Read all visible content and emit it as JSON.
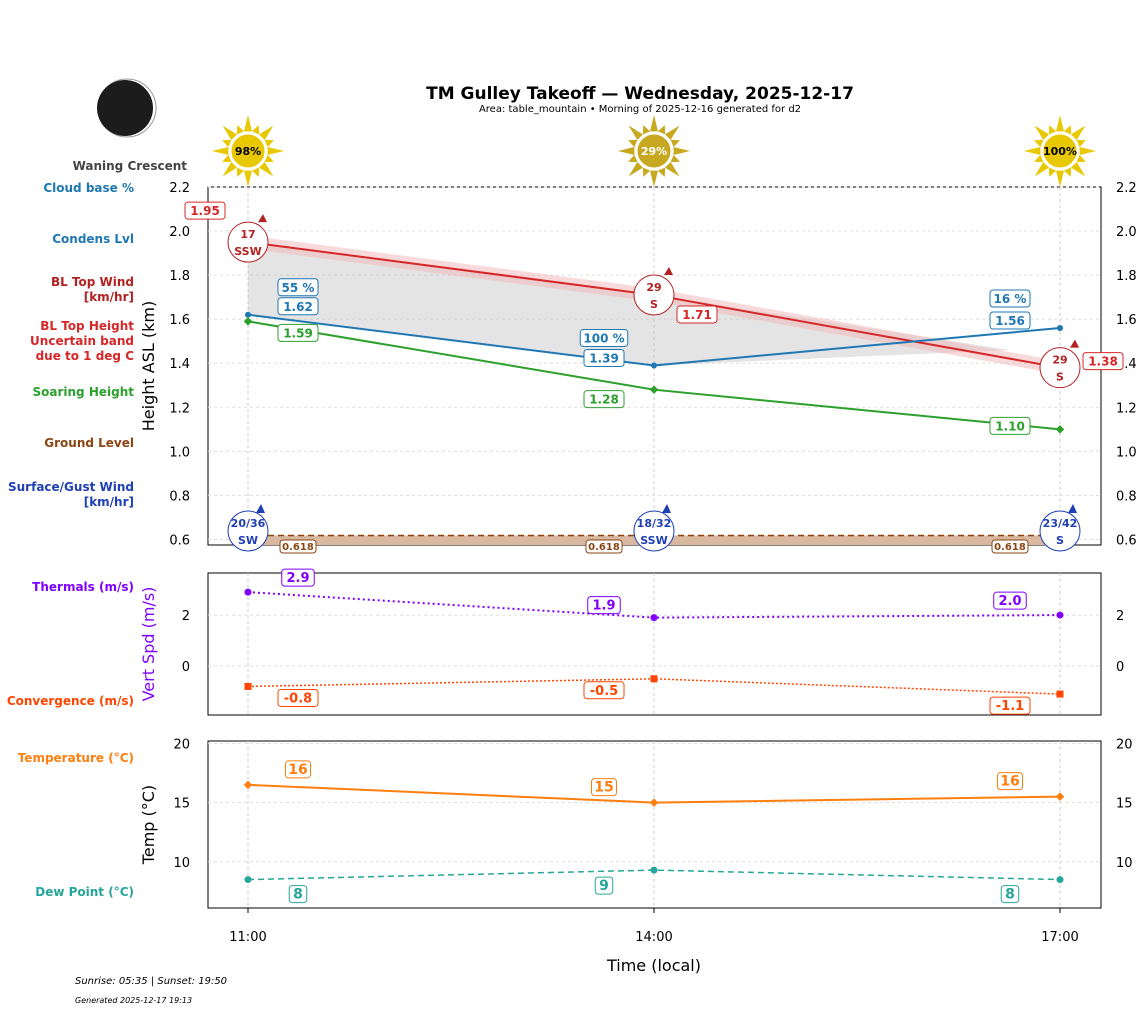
{
  "title": "TM Gulley Takeoff — Wednesday, 2025-12-17",
  "subtitle": "Area: table_mountain • Morning of 2025-12-16 generated for d2",
  "moon_phase": "Waning Crescent",
  "sunrise_sunset": "Sunrise: 05:35 | Sunset: 19:50",
  "generated": "Generated 2025-12-17 19:13",
  "chart_data": [
    {
      "type": "line",
      "panel": "height",
      "ylabel": "Height ASL (km)",
      "ylim": [
        0.575,
        2.2
      ],
      "yticks": [
        "0.6",
        "0.8",
        "1.0",
        "1.2",
        "1.4",
        "1.6",
        "1.8",
        "2.0",
        "2.2"
      ],
      "x": [
        "11:00",
        "14:00",
        "17:00"
      ],
      "grid": true,
      "sun_percent": [
        "98%",
        "29%",
        "100%"
      ],
      "series": [
        {
          "name": "BL Top Height",
          "values": [
            1.95,
            1.71,
            1.38
          ],
          "labels": [
            "1.95",
            "1.71",
            "1.38"
          ],
          "color": "#d62728",
          "band": 0.03
        },
        {
          "name": "Condens Lvl",
          "values": [
            1.62,
            1.39,
            1.56
          ],
          "labels": [
            "1.62",
            "1.39",
            "1.56"
          ],
          "color": "#1f77b4"
        },
        {
          "name": "Cloud base %",
          "labels": [
            "55 %",
            "100 %",
            "16 %"
          ],
          "color": "#1f77b4"
        },
        {
          "name": "Soaring Height",
          "values": [
            1.59,
            1.28,
            1.1
          ],
          "labels": [
            "1.59",
            "1.28",
            "1.10"
          ],
          "color": "#2ca02c"
        },
        {
          "name": "Ground Level",
          "values": [
            0.618,
            0.618,
            0.618
          ],
          "labels": [
            "0.618",
            "0.618",
            "0.618"
          ],
          "color": "#8b4513"
        }
      ],
      "bl_top_wind": [
        {
          "speed": "17",
          "dir": "SSW"
        },
        {
          "speed": "29",
          "dir": "S"
        },
        {
          "speed": "29",
          "dir": "S"
        }
      ],
      "surface_wind": [
        {
          "speed": "20/36",
          "dir": "SW"
        },
        {
          "speed": "18/32",
          "dir": "SSW"
        },
        {
          "speed": "23/42",
          "dir": "S"
        }
      ]
    },
    {
      "type": "line",
      "panel": "vertical",
      "ylabel": "Vert Spd (m/s)",
      "ylim": [
        -1.92,
        3.65
      ],
      "yticks": [
        "0",
        "2"
      ],
      "x": [
        "11:00",
        "14:00",
        "17:00"
      ],
      "series": [
        {
          "name": "Thermals (m/s)",
          "values": [
            2.9,
            1.9,
            2.0
          ],
          "labels": [
            "2.9",
            "1.9",
            "2.0"
          ],
          "color": "#8000ff"
        },
        {
          "name": "Convergence (m/s)",
          "values": [
            -0.8,
            -0.5,
            -1.1
          ],
          "labels": [
            "-0.8",
            "-0.5",
            "-1.1"
          ],
          "color": "#ff4500"
        }
      ]
    },
    {
      "type": "line",
      "panel": "temperature",
      "ylabel": "Temp (°C)",
      "xlabel": "Time (local)",
      "ylim": [
        6.1,
        20.2
      ],
      "yticks": [
        "10",
        "15",
        "20"
      ],
      "x": [
        "11:00",
        "14:00",
        "17:00"
      ],
      "series": [
        {
          "name": "Temperature (°C)",
          "values": [
            16.5,
            15.0,
            15.5
          ],
          "labels": [
            "16",
            "15",
            "16"
          ],
          "color": "#ff7f0e"
        },
        {
          "name": "Dew Point (°C)",
          "values": [
            8.5,
            9.3,
            8.5
          ],
          "labels": [
            "8",
            "9",
            "8"
          ],
          "color": "#26a69a"
        }
      ]
    }
  ],
  "left_labels": [
    {
      "text": "Cloud base %",
      "color": "#1f77b4"
    },
    {
      "text": "Condens Lvl",
      "color": "#1f77b4"
    },
    {
      "text": "BL Top Wind",
      "text2": "[km/hr]",
      "color": "#b22222"
    },
    {
      "text": "BL Top Height",
      "text2": "Uncertain band",
      "text3": "due to 1 deg C",
      "color": "#d62728"
    },
    {
      "text": "Soaring Height",
      "color": "#2ca02c"
    },
    {
      "text": "Ground Level",
      "color": "#8b4513"
    },
    {
      "text": "Surface/Gust Wind",
      "text2": "[km/hr]",
      "color": "#1f3fb4"
    },
    {
      "text": "Thermals (m/s)",
      "color": "#8000ff"
    },
    {
      "text": "Convergence (m/s)",
      "color": "#ff4500"
    },
    {
      "text": "Temperature (°C)",
      "color": "#ff7f0e"
    },
    {
      "text": "Dew Point (°C)",
      "color": "#26a69a"
    }
  ]
}
